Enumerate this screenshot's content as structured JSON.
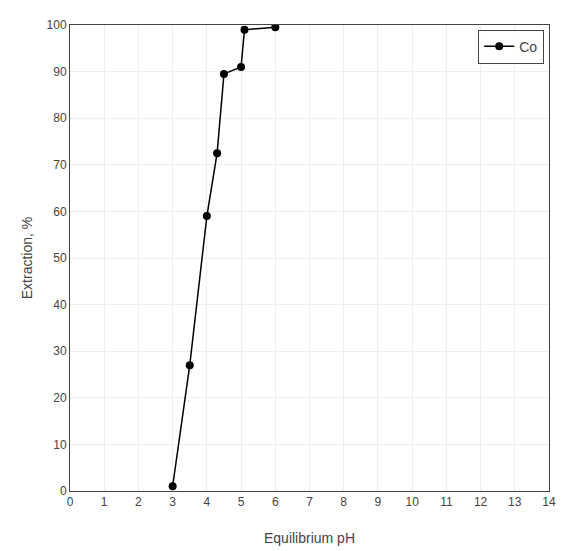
{
  "chart_data": {
    "type": "line",
    "xlabel": "Equilibrium pH",
    "ylabel": "Extraction, %",
    "x": [
      3.0,
      3.5,
      4.0,
      4.3,
      4.5,
      5.0,
      5.1,
      6.0
    ],
    "series": [
      {
        "name": "Co",
        "color": "#000000",
        "marker": "circle",
        "line_style": "solid",
        "values": [
          1.0,
          27.0,
          59.0,
          72.5,
          89.5,
          91.0,
          99.0,
          99.5
        ]
      }
    ],
    "xlim": [
      0,
      14
    ],
    "ylim": [
      0,
      100
    ],
    "xticks": [
      0,
      1,
      2,
      3,
      4,
      5,
      6,
      7,
      8,
      9,
      10,
      11,
      12,
      13,
      14
    ],
    "yticks": [
      0,
      10,
      20,
      30,
      40,
      50,
      60,
      70,
      80,
      90,
      100
    ],
    "grid": true,
    "legend": "upper right"
  }
}
